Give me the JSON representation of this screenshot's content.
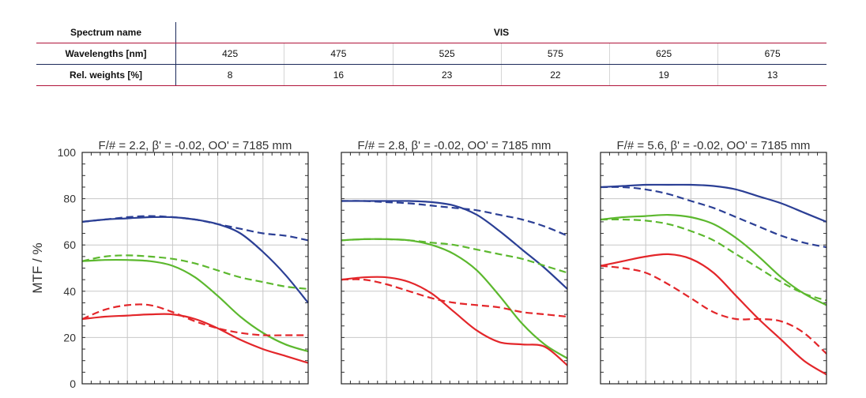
{
  "spectrum_table": {
    "spectrum_label": "Spectrum name",
    "spectrum_value": "VIS",
    "wavelength_label": "Wavelengths [nm]",
    "wavelengths": [
      "425",
      "475",
      "525",
      "575",
      "625",
      "675"
    ],
    "weights_label": "Rel. weights [%]",
    "weights": [
      "8",
      "16",
      "23",
      "22",
      "19",
      "13"
    ]
  },
  "colors": {
    "blue": "#2b3f95",
    "green": "#5cb82e",
    "red": "#e3262a",
    "grid": "#c8c8c8"
  },
  "chart_data": [
    {
      "type": "line",
      "title": "F/# = 2.2, β' = -0.02, OO' = 7185 mm",
      "ylabel": "MTF / %",
      "ylim": [
        0,
        100
      ],
      "yticks": [
        "0",
        "20",
        "40",
        "60",
        "80",
        "100"
      ],
      "xlim": [
        0,
        1
      ],
      "grid": true,
      "series": [
        {
          "color": "blue",
          "dash": false,
          "x": [
            0,
            0.1,
            0.2,
            0.3,
            0.4,
            0.5,
            0.6,
            0.7,
            0.8,
            0.9,
            1.0
          ],
          "y": [
            70,
            71,
            71.5,
            72,
            72,
            71,
            69,
            65,
            57,
            47,
            35
          ]
        },
        {
          "color": "blue",
          "dash": true,
          "x": [
            0,
            0.1,
            0.2,
            0.3,
            0.4,
            0.5,
            0.6,
            0.7,
            0.8,
            0.9,
            1.0
          ],
          "y": [
            70,
            71,
            72,
            72.5,
            72,
            71,
            69,
            67,
            65,
            64,
            62
          ]
        },
        {
          "color": "green",
          "dash": false,
          "x": [
            0,
            0.1,
            0.2,
            0.3,
            0.4,
            0.5,
            0.6,
            0.7,
            0.8,
            0.9,
            1.0
          ],
          "y": [
            53,
            53.5,
            53.5,
            53,
            51,
            46,
            38,
            29,
            22,
            17,
            14
          ]
        },
        {
          "color": "green",
          "dash": true,
          "x": [
            0,
            0.1,
            0.2,
            0.3,
            0.4,
            0.5,
            0.6,
            0.7,
            0.8,
            0.9,
            1.0
          ],
          "y": [
            53,
            55,
            55.5,
            55,
            54,
            52,
            49,
            46,
            44,
            42,
            41
          ]
        },
        {
          "color": "red",
          "dash": false,
          "x": [
            0,
            0.1,
            0.2,
            0.3,
            0.4,
            0.5,
            0.6,
            0.7,
            0.8,
            0.9,
            1.0
          ],
          "y": [
            28,
            29,
            29.5,
            30,
            30,
            28,
            24,
            19,
            15,
            12,
            9
          ]
        },
        {
          "color": "red",
          "dash": true,
          "x": [
            0,
            0.1,
            0.2,
            0.3,
            0.4,
            0.5,
            0.6,
            0.7,
            0.8,
            0.9,
            1.0
          ],
          "y": [
            28,
            32,
            34,
            34,
            31,
            27,
            24,
            22,
            21,
            21,
            21
          ]
        }
      ]
    },
    {
      "type": "line",
      "title": "F/# = 2.8, β' = -0.02, OO' = 7185 mm",
      "ylim": [
        0,
        100
      ],
      "xlim": [
        0,
        1
      ],
      "grid": true,
      "series": [
        {
          "color": "blue",
          "dash": false,
          "x": [
            0,
            0.1,
            0.2,
            0.3,
            0.4,
            0.5,
            0.6,
            0.7,
            0.8,
            0.9,
            1.0
          ],
          "y": [
            79,
            79,
            79,
            79,
            78.5,
            77,
            73,
            66,
            58,
            50,
            41
          ]
        },
        {
          "color": "blue",
          "dash": true,
          "x": [
            0,
            0.1,
            0.2,
            0.3,
            0.4,
            0.5,
            0.6,
            0.7,
            0.8,
            0.9,
            1.0
          ],
          "y": [
            79,
            79,
            78.5,
            78,
            77,
            76,
            75,
            73,
            71,
            68,
            64
          ]
        },
        {
          "color": "green",
          "dash": false,
          "x": [
            0,
            0.1,
            0.2,
            0.3,
            0.4,
            0.5,
            0.6,
            0.7,
            0.8,
            0.9,
            1.0
          ],
          "y": [
            62,
            62.5,
            62.5,
            62,
            60,
            56,
            49,
            38,
            26,
            17,
            11
          ]
        },
        {
          "color": "green",
          "dash": true,
          "x": [
            0,
            0.1,
            0.2,
            0.3,
            0.4,
            0.5,
            0.6,
            0.7,
            0.8,
            0.9,
            1.0
          ],
          "y": [
            62,
            62.5,
            62.5,
            62,
            61,
            60,
            58,
            56,
            54,
            51,
            48
          ]
        },
        {
          "color": "red",
          "dash": false,
          "x": [
            0,
            0.1,
            0.2,
            0.3,
            0.4,
            0.5,
            0.6,
            0.7,
            0.8,
            0.9,
            1.0
          ],
          "y": [
            45,
            46,
            46,
            44,
            39,
            31,
            23,
            18,
            17,
            16,
            8
          ]
        },
        {
          "color": "red",
          "dash": true,
          "x": [
            0,
            0.1,
            0.2,
            0.3,
            0.4,
            0.5,
            0.6,
            0.7,
            0.8,
            0.9,
            1.0
          ],
          "y": [
            45,
            45,
            43,
            40,
            37,
            35,
            34,
            33,
            31,
            30,
            29
          ]
        }
      ]
    },
    {
      "type": "line",
      "title": "F/# = 5.6, β' = -0.02, OO' = 7185 mm",
      "ylim": [
        0,
        100
      ],
      "xlim": [
        0,
        1
      ],
      "grid": true,
      "series": [
        {
          "color": "blue",
          "dash": false,
          "x": [
            0,
            0.1,
            0.2,
            0.3,
            0.4,
            0.5,
            0.6,
            0.7,
            0.8,
            0.9,
            1.0
          ],
          "y": [
            85,
            85.5,
            86,
            86,
            86,
            85.5,
            84,
            81,
            78,
            74,
            70
          ]
        },
        {
          "color": "blue",
          "dash": true,
          "x": [
            0,
            0.1,
            0.2,
            0.3,
            0.4,
            0.5,
            0.6,
            0.7,
            0.8,
            0.9,
            1.0
          ],
          "y": [
            85,
            85,
            84,
            82,
            79,
            76,
            72,
            68,
            64,
            61,
            59
          ]
        },
        {
          "color": "green",
          "dash": false,
          "x": [
            0,
            0.1,
            0.2,
            0.3,
            0.4,
            0.5,
            0.6,
            0.7,
            0.8,
            0.9,
            1.0
          ],
          "y": [
            71,
            72,
            72.5,
            73,
            72,
            69,
            63,
            55,
            46,
            39,
            34
          ]
        },
        {
          "color": "green",
          "dash": true,
          "x": [
            0,
            0.1,
            0.2,
            0.3,
            0.4,
            0.5,
            0.6,
            0.7,
            0.8,
            0.9,
            1.0
          ],
          "y": [
            71,
            71,
            70.5,
            69,
            66,
            62,
            56,
            50,
            44,
            39,
            36
          ]
        },
        {
          "color": "red",
          "dash": false,
          "x": [
            0,
            0.1,
            0.2,
            0.3,
            0.4,
            0.5,
            0.6,
            0.7,
            0.8,
            0.9,
            1.0
          ],
          "y": [
            51,
            53,
            55,
            56,
            54,
            48,
            38,
            28,
            19,
            10,
            4
          ]
        },
        {
          "color": "red",
          "dash": true,
          "x": [
            0,
            0.1,
            0.2,
            0.3,
            0.4,
            0.5,
            0.6,
            0.7,
            0.8,
            0.9,
            1.0
          ],
          "y": [
            51,
            50,
            48,
            43,
            37,
            31,
            28,
            28,
            27,
            22,
            13
          ]
        }
      ]
    }
  ]
}
